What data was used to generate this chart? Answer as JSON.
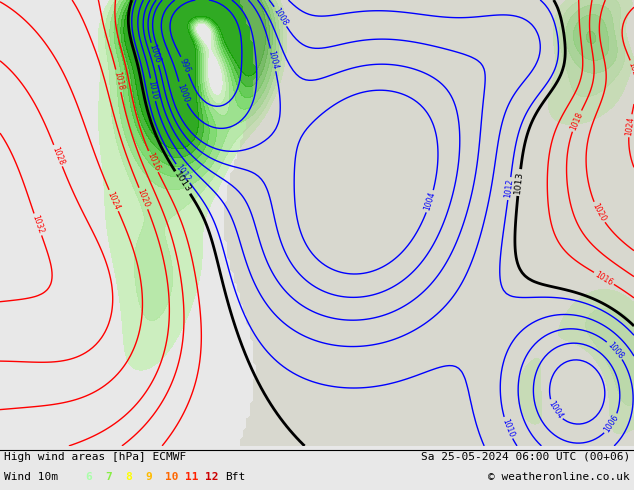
{
  "title_left": "High wind areas [hPa] ECMWF",
  "title_right": "Sa 25-05-2024 06:00 UTC (00+06)",
  "subtitle_left": "Wind 10m",
  "subtitle_right": "© weatheronline.co.uk",
  "bft_nums": [
    "6",
    "7",
    "8",
    "9",
    "10",
    "11",
    "12"
  ],
  "bft_colors": [
    "#aaffaa",
    "#88ee44",
    "#ffff00",
    "#ffbb00",
    "#ff6600",
    "#ff2200",
    "#cc0000"
  ],
  "bg_color": "#e8e8e8",
  "map_bg": "#e8e8e8",
  "ocean_color": "#e0e8f0",
  "land_color": "#b8b8a0",
  "wind_green_light": "#c8f0c0",
  "wind_green_mid": "#a0e890",
  "wind_green_dark": "#60d060",
  "figsize": [
    6.34,
    4.9
  ],
  "dpi": 100
}
